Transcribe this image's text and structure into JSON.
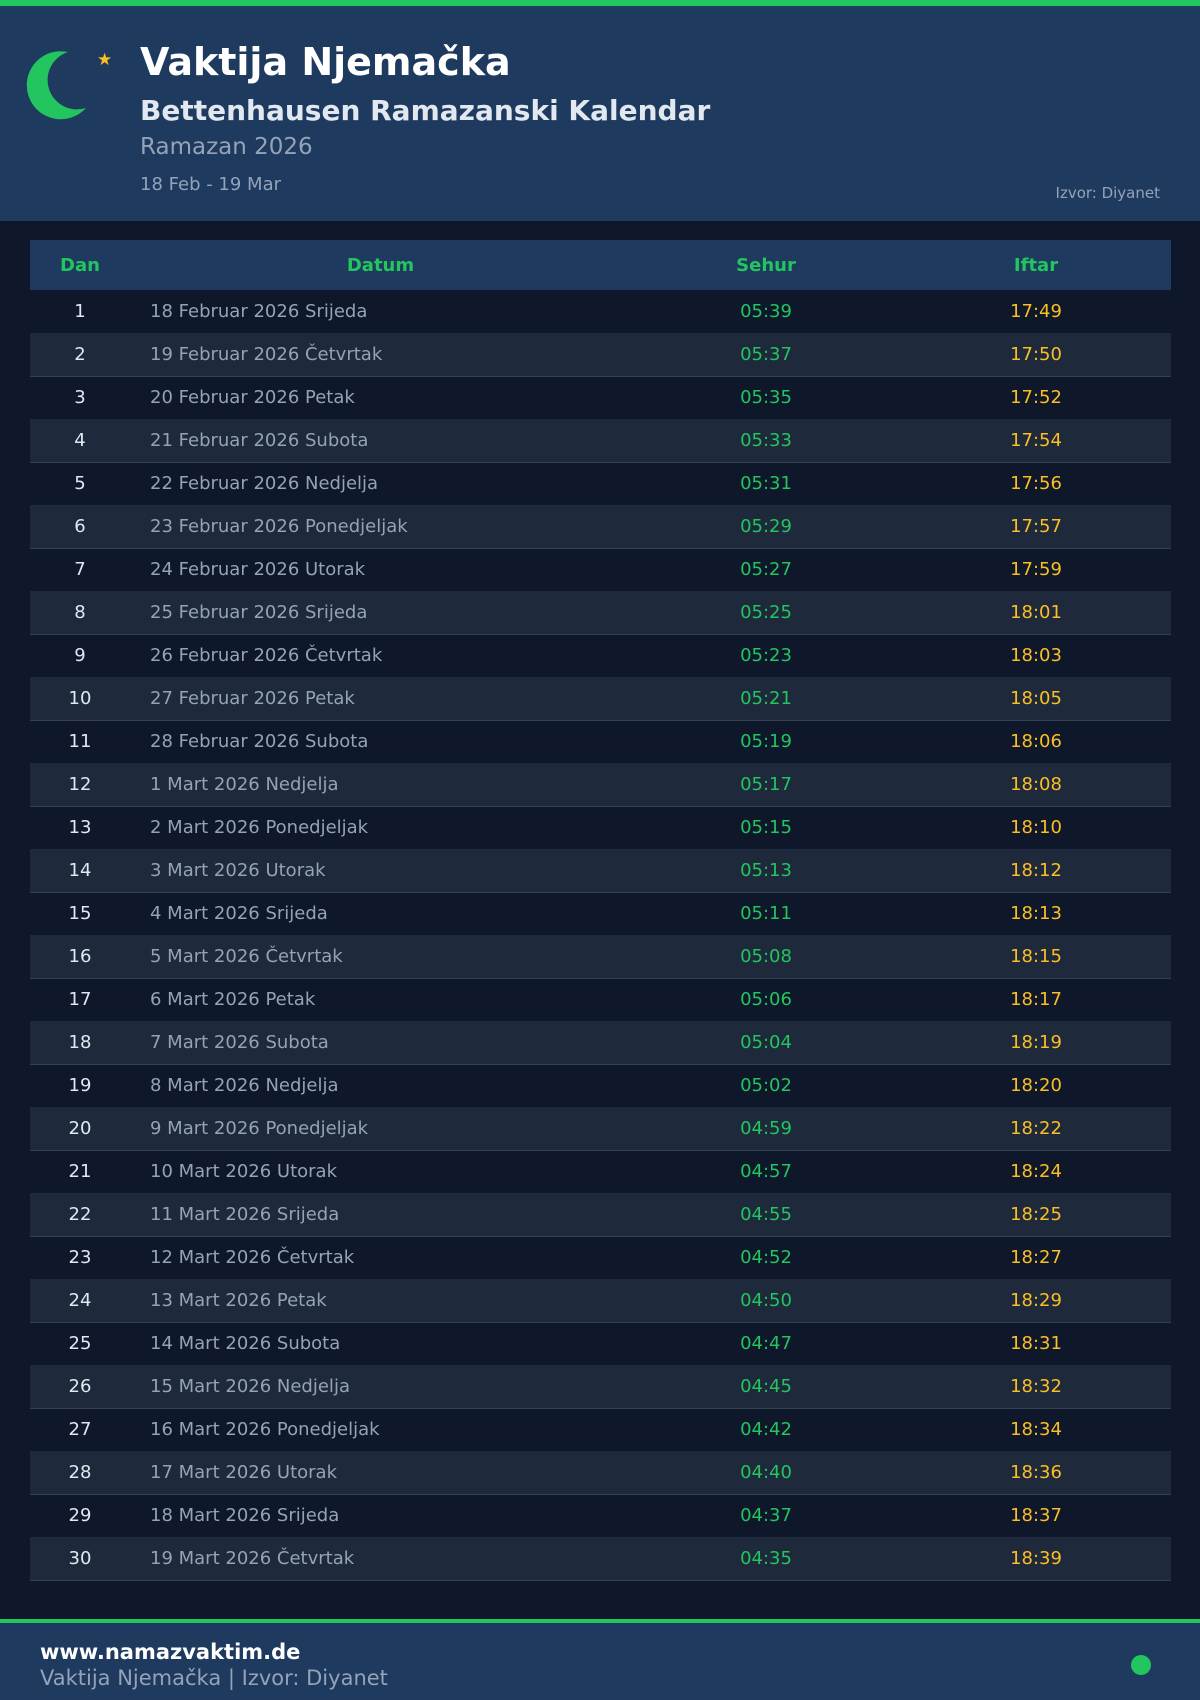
{
  "header": {
    "title": "Vaktija Njemačka",
    "subtitle": "Bettenhausen Ramazanski Kalendar",
    "period": "Ramazan 2026",
    "range": "18 Feb - 19 Mar",
    "source": "Izvor: Diyanet",
    "icon": "crescent-star-icon"
  },
  "colors": {
    "accent": "#22c55e",
    "iftar": "#fbbf24",
    "header_bg": "#1e3a5f",
    "page_bg": "#0f172a"
  },
  "table": {
    "headers": {
      "dan": "Dan",
      "datum": "Datum",
      "sehur": "Sehur",
      "iftar": "Iftar"
    },
    "rows": [
      {
        "dan": "1",
        "datum": "18 Februar 2026 Srijeda",
        "sehur": "05:39",
        "iftar": "17:49"
      },
      {
        "dan": "2",
        "datum": "19 Februar 2026 Četvrtak",
        "sehur": "05:37",
        "iftar": "17:50"
      },
      {
        "dan": "3",
        "datum": "20 Februar 2026 Petak",
        "sehur": "05:35",
        "iftar": "17:52"
      },
      {
        "dan": "4",
        "datum": "21 Februar 2026 Subota",
        "sehur": "05:33",
        "iftar": "17:54"
      },
      {
        "dan": "5",
        "datum": "22 Februar 2026 Nedjelja",
        "sehur": "05:31",
        "iftar": "17:56"
      },
      {
        "dan": "6",
        "datum": "23 Februar 2026 Ponedjeljak",
        "sehur": "05:29",
        "iftar": "17:57"
      },
      {
        "dan": "7",
        "datum": "24 Februar 2026 Utorak",
        "sehur": "05:27",
        "iftar": "17:59"
      },
      {
        "dan": "8",
        "datum": "25 Februar 2026 Srijeda",
        "sehur": "05:25",
        "iftar": "18:01"
      },
      {
        "dan": "9",
        "datum": "26 Februar 2026 Četvrtak",
        "sehur": "05:23",
        "iftar": "18:03"
      },
      {
        "dan": "10",
        "datum": "27 Februar 2026 Petak",
        "sehur": "05:21",
        "iftar": "18:05"
      },
      {
        "dan": "11",
        "datum": "28 Februar 2026 Subota",
        "sehur": "05:19",
        "iftar": "18:06"
      },
      {
        "dan": "12",
        "datum": "1 Mart 2026 Nedjelja",
        "sehur": "05:17",
        "iftar": "18:08"
      },
      {
        "dan": "13",
        "datum": "2 Mart 2026 Ponedjeljak",
        "sehur": "05:15",
        "iftar": "18:10"
      },
      {
        "dan": "14",
        "datum": "3 Mart 2026 Utorak",
        "sehur": "05:13",
        "iftar": "18:12"
      },
      {
        "dan": "15",
        "datum": "4 Mart 2026 Srijeda",
        "sehur": "05:11",
        "iftar": "18:13"
      },
      {
        "dan": "16",
        "datum": "5 Mart 2026 Četvrtak",
        "sehur": "05:08",
        "iftar": "18:15"
      },
      {
        "dan": "17",
        "datum": "6 Mart 2026 Petak",
        "sehur": "05:06",
        "iftar": "18:17"
      },
      {
        "dan": "18",
        "datum": "7 Mart 2026 Subota",
        "sehur": "05:04",
        "iftar": "18:19"
      },
      {
        "dan": "19",
        "datum": "8 Mart 2026 Nedjelja",
        "sehur": "05:02",
        "iftar": "18:20"
      },
      {
        "dan": "20",
        "datum": "9 Mart 2026 Ponedjeljak",
        "sehur": "04:59",
        "iftar": "18:22"
      },
      {
        "dan": "21",
        "datum": "10 Mart 2026 Utorak",
        "sehur": "04:57",
        "iftar": "18:24"
      },
      {
        "dan": "22",
        "datum": "11 Mart 2026 Srijeda",
        "sehur": "04:55",
        "iftar": "18:25"
      },
      {
        "dan": "23",
        "datum": "12 Mart 2026 Četvrtak",
        "sehur": "04:52",
        "iftar": "18:27"
      },
      {
        "dan": "24",
        "datum": "13 Mart 2026 Petak",
        "sehur": "04:50",
        "iftar": "18:29"
      },
      {
        "dan": "25",
        "datum": "14 Mart 2026 Subota",
        "sehur": "04:47",
        "iftar": "18:31"
      },
      {
        "dan": "26",
        "datum": "15 Mart 2026 Nedjelja",
        "sehur": "04:45",
        "iftar": "18:32"
      },
      {
        "dan": "27",
        "datum": "16 Mart 2026 Ponedjeljak",
        "sehur": "04:42",
        "iftar": "18:34"
      },
      {
        "dan": "28",
        "datum": "17 Mart 2026 Utorak",
        "sehur": "04:40",
        "iftar": "18:36"
      },
      {
        "dan": "29",
        "datum": "18 Mart 2026 Srijeda",
        "sehur": "04:37",
        "iftar": "18:37"
      },
      {
        "dan": "30",
        "datum": "19 Mart 2026 Četvrtak",
        "sehur": "04:35",
        "iftar": "18:39"
      }
    ]
  },
  "footer": {
    "site": "www.namazvaktim.de",
    "text": "Vaktija Njemačka | Izvor: Diyanet"
  }
}
